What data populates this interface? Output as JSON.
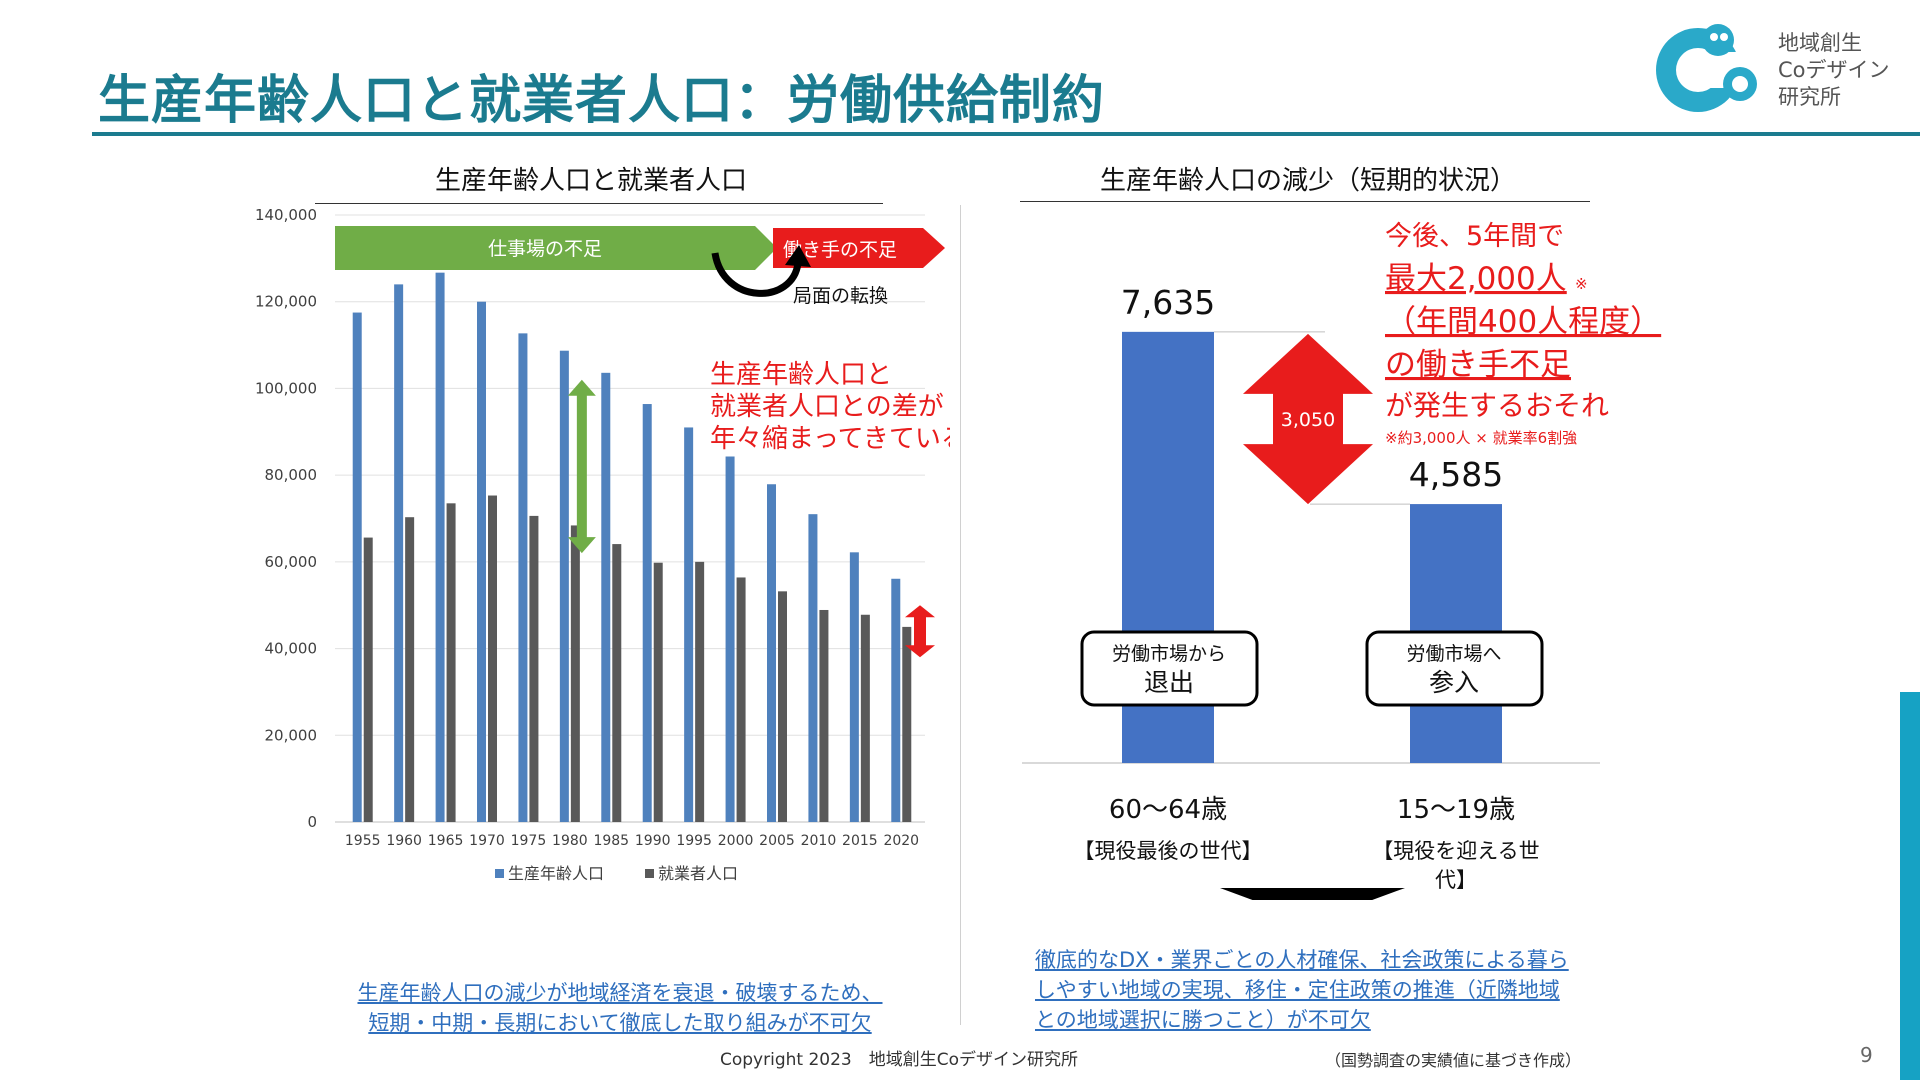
{
  "slide": {
    "title": "生産年齢人口と就業者人口：労働供給制約",
    "logo_text": "地域創生\nCoデザイン\n研究所",
    "page_number": "9",
    "copyright": "Copyright 2023　地域創生Coデザイン研究所",
    "source_note": "（国勢調査の実績値に基づき作成）",
    "accent_color": "#1b7b8f",
    "side_accent_color": "#16a2c4"
  },
  "left_panel": {
    "title": "生産年齢人口と就業者人口",
    "arrow_green_label": "仕事場の不足",
    "arrow_red_label": "働き手の不足",
    "turn_label": "局面の転換",
    "gap_annotation": "生産年齢人口と\n就業者人口との差が\n年々縮まってきている",
    "bottom_note": "生産年齢人口の減少が地域経済を衰退・破壊するため、\n短期・中期・長期において徹底した取り組みが不可欠"
  },
  "right_panel": {
    "title": "生産年齢人口の減少（短期的状況）",
    "bar_left_label": "7,635",
    "bar_right_label": "4,585",
    "diff_label": "3,050",
    "box_left": [
      "労働市場から",
      "退出"
    ],
    "box_right": [
      "労働市場へ",
      "参入"
    ],
    "cat_left": "60〜64歳",
    "cat_left_sub": "【現役最後の世代】",
    "cat_right": "15〜19歳",
    "cat_right_sub": [
      "【現役を迎える世",
      "代】"
    ],
    "headline": [
      "今後、5年間で",
      "最大2,000人",
      "（年間400人程度）",
      "の働き手不足",
      "が発生するおそれ"
    ],
    "headline_mark": "※",
    "headline_footnote": "※約3,000人 × 就業率6割強",
    "bottom_note": "徹底的なDX・業界ごとの人材確保、社会政策による暮ら\nしやすい地域の実現、移住・定住政策の推進（近隣地域\nとの地域選択に勝つこと）が不可欠"
  },
  "chart_data": [
    {
      "type": "bar",
      "categories": [
        "1955",
        "1960",
        "1965",
        "1970",
        "1975",
        "1980",
        "1985",
        "1990",
        "1995",
        "2000",
        "2005",
        "2010",
        "2015",
        "2020"
      ],
      "series": [
        {
          "name": "生産年齢人口",
          "color": "#4f81bd",
          "values": [
            117500,
            124000,
            126700,
            120000,
            112700,
            108700,
            103600,
            96400,
            91000,
            84300,
            77900,
            71000,
            62200,
            56100
          ]
        },
        {
          "name": "就業者人口",
          "color": "#595959",
          "values": [
            65600,
            70300,
            73500,
            75300,
            70600,
            68400,
            64100,
            59800,
            60000,
            56400,
            53200,
            48900,
            47800,
            45000
          ]
        }
      ],
      "ylim": [
        0,
        140000
      ],
      "yticks": [
        "0",
        "20,000",
        "40,000",
        "60,000",
        "80,000",
        "100,000",
        "120,000",
        "140,000"
      ],
      "grid": true,
      "legend_position": "bottom"
    },
    {
      "type": "bar",
      "categories": [
        "60〜64歳",
        "15〜19歳"
      ],
      "values": [
        7635,
        4585
      ],
      "color": "#4472c4"
    }
  ]
}
